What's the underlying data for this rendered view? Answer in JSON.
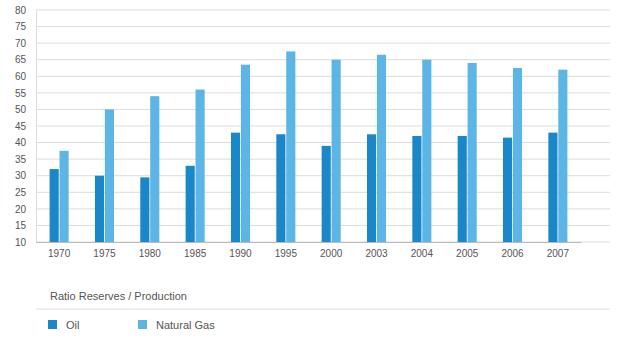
{
  "chart_data": {
    "type": "bar",
    "legend_title": "Ratio Reserves / Production",
    "categories": [
      "1970",
      "1975",
      "1980",
      "1985",
      "1990",
      "1995",
      "2000",
      "2003",
      "2004",
      "2005",
      "2006",
      "2007"
    ],
    "series": [
      {
        "name": "Oil",
        "color": "#1a87c9",
        "values": [
          32,
          30,
          29.5,
          33,
          43,
          42.5,
          39,
          42.5,
          42,
          42,
          41.5,
          43
        ]
      },
      {
        "name": "Natural Gas",
        "color": "#5cb5e4",
        "values": [
          37.5,
          50,
          54,
          56,
          63.5,
          67.5,
          65,
          66.5,
          65,
          64,
          62.5,
          62
        ]
      }
    ],
    "ylim": [
      10,
      80
    ],
    "yticks": [
      10,
      15,
      20,
      25,
      30,
      35,
      40,
      45,
      50,
      55,
      60,
      65,
      70,
      75,
      80
    ],
    "grid": true,
    "legend": "bottom"
  }
}
